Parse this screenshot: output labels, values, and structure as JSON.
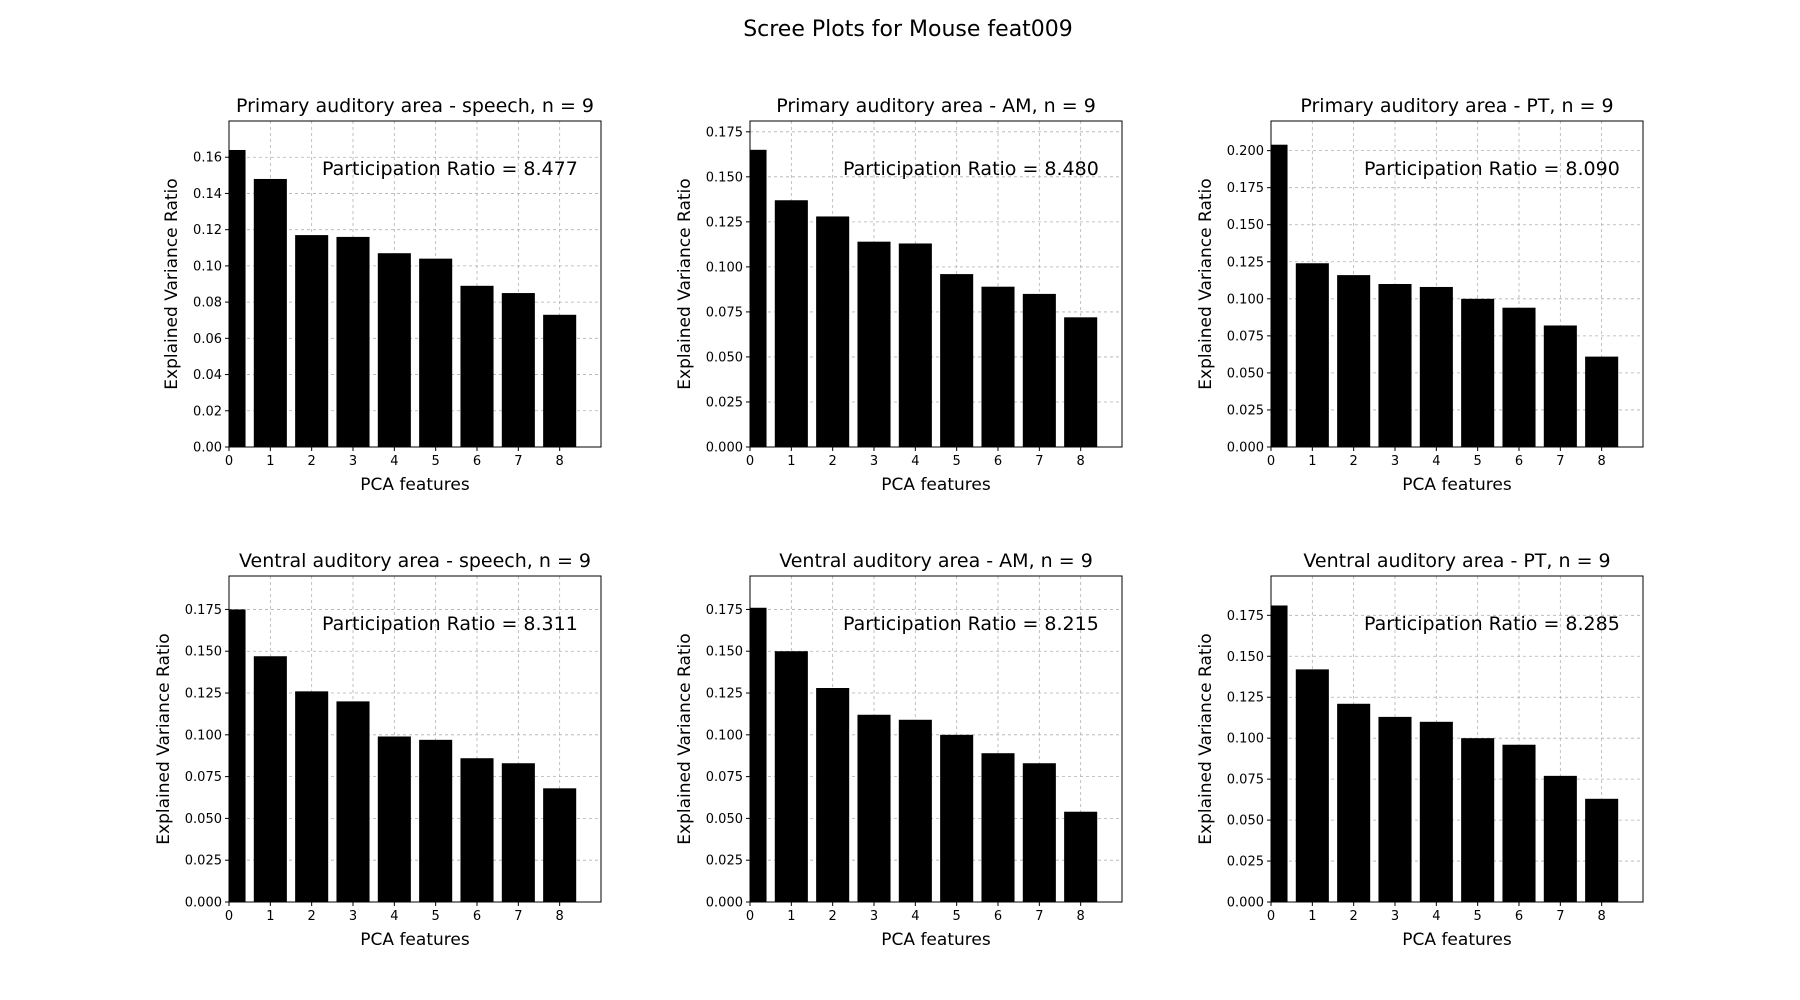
{
  "figure": {
    "title": "Scree Plots for Mouse feat009"
  },
  "chart_data": [
    {
      "type": "bar",
      "title": "Primary auditory area - speech, n = 9",
      "annotation": "Participation Ratio = 8.477",
      "xlabel": "PCA features",
      "ylabel": "Explained Variance Ratio",
      "grid": true,
      "color": "#000000",
      "categories": [
        "0",
        "1",
        "2",
        "3",
        "4",
        "5",
        "6",
        "7",
        "8"
      ],
      "values": [
        0.164,
        0.148,
        0.117,
        0.116,
        0.107,
        0.104,
        0.089,
        0.085,
        0.073
      ],
      "xlim": [
        0,
        9
      ],
      "ylim": [
        0,
        0.18
      ],
      "yticks": [
        0.0,
        0.02,
        0.04,
        0.06,
        0.08,
        0.1,
        0.12,
        0.14,
        0.16
      ],
      "yticklabels": [
        "0.00",
        "0.02",
        "0.04",
        "0.06",
        "0.08",
        "0.10",
        "0.12",
        "0.14",
        "0.16"
      ]
    },
    {
      "type": "bar",
      "title": "Primary auditory area - AM, n = 9",
      "annotation": "Participation Ratio = 8.480",
      "xlabel": "PCA features",
      "ylabel": "Explained Variance Ratio",
      "grid": true,
      "color": "#000000",
      "categories": [
        "0",
        "1",
        "2",
        "3",
        "4",
        "5",
        "6",
        "7",
        "8"
      ],
      "values": [
        0.165,
        0.137,
        0.128,
        0.114,
        0.113,
        0.096,
        0.089,
        0.085,
        0.072
      ],
      "xlim": [
        0,
        9
      ],
      "ylim": [
        0,
        0.181
      ],
      "yticks": [
        0.0,
        0.025,
        0.05,
        0.075,
        0.1,
        0.125,
        0.15,
        0.175
      ],
      "yticklabels": [
        "0.000",
        "0.025",
        "0.050",
        "0.075",
        "0.100",
        "0.125",
        "0.150",
        "0.175"
      ]
    },
    {
      "type": "bar",
      "title": "Primary auditory area - PT, n = 9",
      "annotation": "Participation Ratio = 8.090",
      "xlabel": "PCA features",
      "ylabel": "Explained Variance Ratio",
      "grid": true,
      "color": "#000000",
      "categories": [
        "0",
        "1",
        "2",
        "3",
        "4",
        "5",
        "6",
        "7",
        "8"
      ],
      "values": [
        0.204,
        0.124,
        0.116,
        0.11,
        0.108,
        0.1,
        0.094,
        0.082,
        0.061
      ],
      "xlim": [
        0,
        9
      ],
      "ylim": [
        0,
        0.22
      ],
      "yticks": [
        0.0,
        0.025,
        0.05,
        0.075,
        0.1,
        0.125,
        0.15,
        0.175,
        0.2
      ],
      "yticklabels": [
        "0.000",
        "0.025",
        "0.050",
        "0.075",
        "0.100",
        "0.125",
        "0.150",
        "0.175",
        "0.200"
      ]
    },
    {
      "type": "bar",
      "title": "Ventral auditory area - speech, n = 9",
      "annotation": "Participation Ratio = 8.311",
      "xlabel": "PCA features",
      "ylabel": "Explained Variance Ratio",
      "grid": true,
      "color": "#000000",
      "categories": [
        "0",
        "1",
        "2",
        "3",
        "4",
        "5",
        "6",
        "7",
        "8"
      ],
      "values": [
        0.175,
        0.147,
        0.126,
        0.12,
        0.099,
        0.097,
        0.086,
        0.083,
        0.068
      ],
      "xlim": [
        0,
        9
      ],
      "ylim": [
        0,
        0.195
      ],
      "yticks": [
        0.0,
        0.025,
        0.05,
        0.075,
        0.1,
        0.125,
        0.15,
        0.175
      ],
      "yticklabels": [
        "0.000",
        "0.025",
        "0.050",
        "0.075",
        "0.100",
        "0.125",
        "0.150",
        "0.175"
      ]
    },
    {
      "type": "bar",
      "title": "Ventral auditory area - AM, n = 9",
      "annotation": "Participation Ratio = 8.215",
      "xlabel": "PCA features",
      "ylabel": "Explained Variance Ratio",
      "grid": true,
      "color": "#000000",
      "categories": [
        "0",
        "1",
        "2",
        "3",
        "4",
        "5",
        "6",
        "7",
        "8"
      ],
      "values": [
        0.176,
        0.15,
        0.128,
        0.112,
        0.109,
        0.1,
        0.089,
        0.083,
        0.054
      ],
      "xlim": [
        0,
        9
      ],
      "ylim": [
        0,
        0.195
      ],
      "yticks": [
        0.0,
        0.025,
        0.05,
        0.075,
        0.1,
        0.125,
        0.15,
        0.175
      ],
      "yticklabels": [
        "0.000",
        "0.025",
        "0.050",
        "0.075",
        "0.100",
        "0.125",
        "0.150",
        "0.175"
      ]
    },
    {
      "type": "bar",
      "title": "Ventral auditory area - PT, n = 9",
      "annotation": "Participation Ratio = 8.285",
      "xlabel": "PCA features",
      "ylabel": "Explained Variance Ratio",
      "grid": true,
      "color": "#000000",
      "categories": [
        "0",
        "1",
        "2",
        "3",
        "4",
        "5",
        "6",
        "7",
        "8"
      ],
      "values": [
        0.181,
        0.142,
        0.121,
        0.113,
        0.11,
        0.1,
        0.096,
        0.077,
        0.063
      ],
      "xlim": [
        0,
        9
      ],
      "ylim": [
        0,
        0.199
      ],
      "yticks": [
        0.0,
        0.025,
        0.05,
        0.075,
        0.1,
        0.125,
        0.15,
        0.175
      ],
      "yticklabels": [
        "0.000",
        "0.025",
        "0.050",
        "0.075",
        "0.100",
        "0.125",
        "0.150",
        "0.175"
      ]
    }
  ]
}
